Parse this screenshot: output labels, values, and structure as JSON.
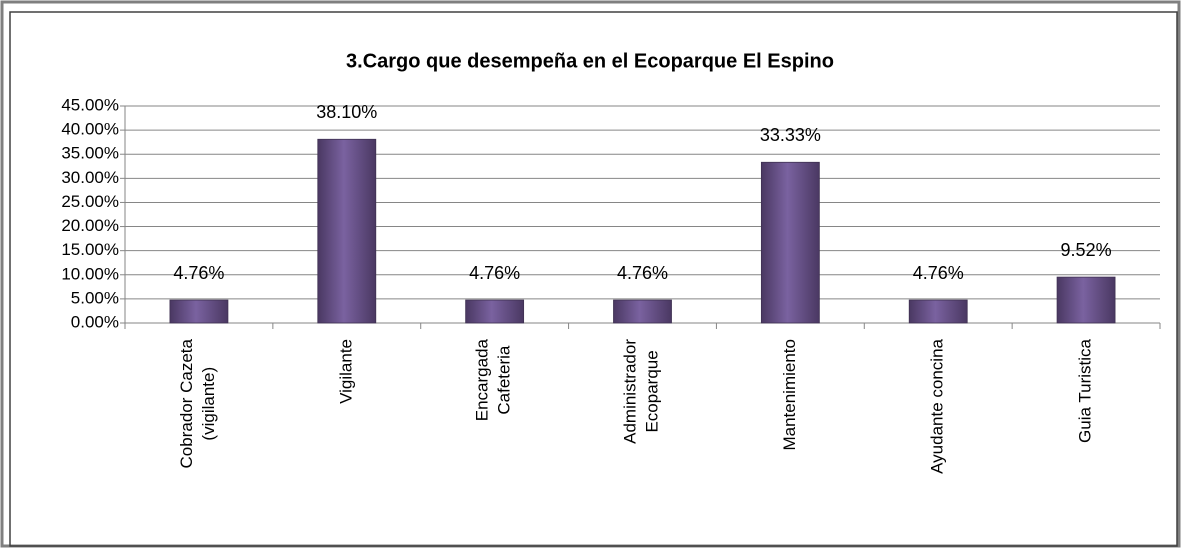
{
  "chart_data": {
    "type": "bar",
    "title": "3.Cargo que desempeña en el  Ecoparque El Espino",
    "categories": [
      "Cobrador Cazeta (vigilante)",
      "Vigilante",
      "Encargada Cafeteria",
      "Administrador Ecoparque",
      "Mantenimiento",
      "Ayudante concina",
      "Guia Turistica"
    ],
    "values": [
      4.76,
      38.1,
      4.76,
      4.76,
      33.33,
      4.76,
      9.52
    ],
    "value_labels": [
      "4.76%",
      "38.10%",
      "4.76%",
      "4.76%",
      "33.33%",
      "4.76%",
      "9.52%"
    ],
    "color": "#604a7b",
    "ylim": [
      0,
      45
    ],
    "yticks": [
      {
        "value": 0,
        "label": "0.00%"
      },
      {
        "value": 5,
        "label": "5.00%"
      },
      {
        "value": 10,
        "label": "10.00%"
      },
      {
        "value": 15,
        "label": "15.00%"
      },
      {
        "value": 20,
        "label": "20.00%"
      },
      {
        "value": 25,
        "label": "25.00%"
      },
      {
        "value": 30,
        "label": "30.00%"
      },
      {
        "value": 35,
        "label": "35.00%"
      },
      {
        "value": 40,
        "label": "40.00%"
      },
      {
        "value": 45,
        "label": "45.00%"
      }
    ],
    "grid": true
  }
}
